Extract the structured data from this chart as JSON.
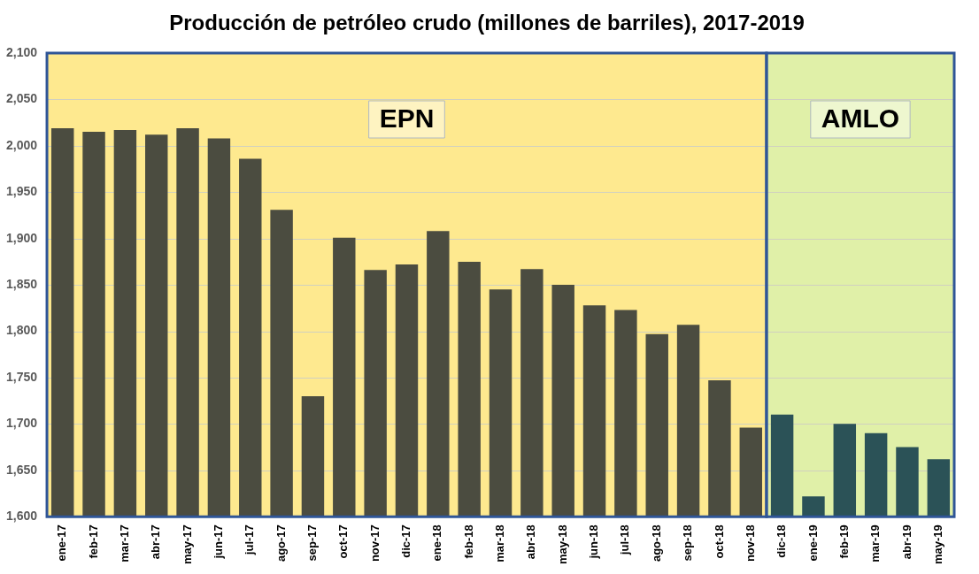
{
  "chart_data": {
    "type": "bar",
    "title": "Producción de petróleo crudo (millones de barriles), 2017-2019",
    "categories": [
      "ene-17",
      "feb-17",
      "mar-17",
      "abr-17",
      "may-17",
      "jun-17",
      "jul-17",
      "ago-17",
      "sep-17",
      "oct-17",
      "nov-17",
      "dic-17",
      "ene-18",
      "feb-18",
      "mar-18",
      "abr-18",
      "may-18",
      "jun-18",
      "jul-18",
      "ago-18",
      "sep-18",
      "oct-18",
      "nov-18",
      "dic-18",
      "ene-19",
      "feb-19",
      "mar-19",
      "abr-19",
      "may-19"
    ],
    "values": [
      2019,
      2015,
      2017,
      2012,
      2019,
      2008,
      1986,
      1931,
      1730,
      1901,
      1866,
      1872,
      1908,
      1875,
      1845,
      1867,
      1850,
      1828,
      1823,
      1797,
      1807,
      1747,
      1696,
      1710,
      1622,
      1700,
      1690,
      1675,
      1662
    ],
    "colors": [
      "#4b4c40",
      "#4b4c40",
      "#4b4c40",
      "#4b4c40",
      "#4b4c40",
      "#4b4c40",
      "#4b4c40",
      "#4b4c40",
      "#4b4c40",
      "#4b4c40",
      "#4b4c40",
      "#4b4c40",
      "#4b4c40",
      "#4b4c40",
      "#4b4c40",
      "#4b4c40",
      "#4b4c40",
      "#4b4c40",
      "#4b4c40",
      "#4b4c40",
      "#4b4c40",
      "#4b4c40",
      "#4b4c40",
      "#2b5257",
      "#2b5257",
      "#2b5257",
      "#2b5257",
      "#2b5257",
      "#2b5257"
    ],
    "ylim": [
      1600,
      2100
    ],
    "yticks": [
      {
        "value": 1600,
        "label": "1,600"
      },
      {
        "value": 1650,
        "label": "1,650"
      },
      {
        "value": 1700,
        "label": "1,700"
      },
      {
        "value": 1750,
        "label": "1,750"
      },
      {
        "value": 1800,
        "label": "1,800"
      },
      {
        "value": 1850,
        "label": "1,850"
      },
      {
        "value": 1900,
        "label": "1,900"
      },
      {
        "value": 1950,
        "label": "1,950"
      },
      {
        "value": 2000,
        "label": "2,000"
      },
      {
        "value": 2050,
        "label": "2,050"
      },
      {
        "value": 2100,
        "label": "2,100"
      }
    ],
    "bands": [
      {
        "axis": "x",
        "from": "ene-17",
        "to": "nov-18",
        "label": "EPN",
        "color": "#fee98f"
      },
      {
        "axis": "x",
        "from": "dic-18",
        "to": "may-19",
        "label": "AMLO",
        "color": "#e0f0a8"
      }
    ],
    "grid": "y",
    "legend": false
  }
}
